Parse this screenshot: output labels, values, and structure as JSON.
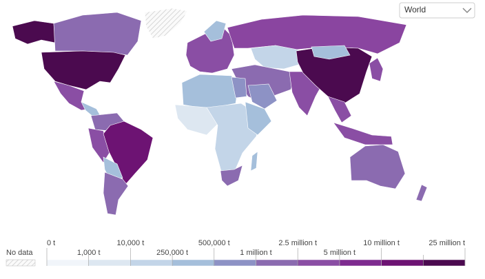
{
  "dropdown": {
    "value": "World"
  },
  "legend": {
    "no_data": "No data",
    "labels": [
      "0 t",
      "1,000 t",
      "10,000 t",
      "250,000 t",
      "500,000 t",
      "1 million t",
      "2.5 million t",
      "5 million t",
      "10 million t",
      null,
      "25 million t"
    ],
    "colors": [
      "#f1f5fa",
      "#dde7f1",
      "#c3d5e8",
      "#a5bfdb",
      "#8d92c5",
      "#8b6bb0",
      "#8a4ea4",
      "#7e2b8f",
      "#6d1373",
      "#4b0a4f"
    ]
  }
}
